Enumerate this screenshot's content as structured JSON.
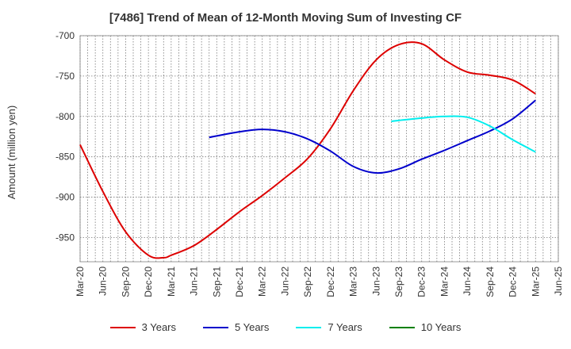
{
  "chart_data": {
    "type": "line",
    "title": "[7486]  Trend of Mean of 12-Month Moving Sum of Investing CF",
    "ylabel": "Amount (million yen)",
    "xlabel": "",
    "ylim": [
      -980,
      -700
    ],
    "yticks": [
      -700,
      -750,
      -800,
      -850,
      -900,
      -950
    ],
    "x_ticks": [
      "Mar-20",
      "Jun-20",
      "Sep-20",
      "Dec-20",
      "Mar-21",
      "Jun-21",
      "Sep-21",
      "Dec-21",
      "Mar-22",
      "Jun-22",
      "Sep-22",
      "Dec-22",
      "Mar-23",
      "Jun-23",
      "Sep-23",
      "Dec-23",
      "Mar-24",
      "Jun-24",
      "Sep-24",
      "Dec-24",
      "Mar-25",
      "Jun-25"
    ],
    "grid": true,
    "legend_position": "bottom",
    "series": [
      {
        "name": "3 Years",
        "color": "#dd0000",
        "points": [
          [
            "Mar-20",
            -835
          ],
          [
            "Jun-20",
            -893
          ],
          [
            "Sep-20",
            -943
          ],
          [
            "Dec-20",
            -972
          ],
          [
            "Feb-21",
            -975
          ],
          [
            "Mar-21",
            -972
          ],
          [
            "Jun-21",
            -960
          ],
          [
            "Sep-21",
            -940
          ],
          [
            "Dec-21",
            -918
          ],
          [
            "Mar-22",
            -898
          ],
          [
            "Jun-22",
            -876
          ],
          [
            "Sep-22",
            -852
          ],
          [
            "Dec-22",
            -815
          ],
          [
            "Mar-23",
            -768
          ],
          [
            "Jun-23",
            -730
          ],
          [
            "Sep-23",
            -711
          ],
          [
            "Dec-23",
            -710
          ],
          [
            "Mar-24",
            -730
          ],
          [
            "Jun-24",
            -745
          ],
          [
            "Sep-24",
            -749
          ],
          [
            "Dec-24",
            -755
          ],
          [
            "Mar-25",
            -772
          ]
        ]
      },
      {
        "name": "5 Years",
        "color": "#0000cc",
        "points": [
          [
            "Aug-21",
            -826
          ],
          [
            "Dec-21",
            -819
          ],
          [
            "Mar-22",
            -816
          ],
          [
            "Jun-22",
            -819
          ],
          [
            "Sep-22",
            -828
          ],
          [
            "Dec-22",
            -843
          ],
          [
            "Mar-23",
            -862
          ],
          [
            "Jun-23",
            -870
          ],
          [
            "Sep-23",
            -865
          ],
          [
            "Dec-23",
            -853
          ],
          [
            "Mar-24",
            -842
          ],
          [
            "Jun-24",
            -830
          ],
          [
            "Sep-24",
            -818
          ],
          [
            "Dec-24",
            -803
          ],
          [
            "Mar-25",
            -780
          ]
        ]
      },
      {
        "name": "7 Years",
        "color": "#00eeee",
        "points": [
          [
            "Aug-23",
            -806
          ],
          [
            "Dec-23",
            -802
          ],
          [
            "Mar-24",
            -800
          ],
          [
            "Jun-24",
            -801
          ],
          [
            "Sep-24",
            -812
          ],
          [
            "Dec-24",
            -829
          ],
          [
            "Mar-25",
            -844
          ]
        ]
      },
      {
        "name": "10 Years",
        "color": "#008000",
        "points": []
      }
    ]
  }
}
